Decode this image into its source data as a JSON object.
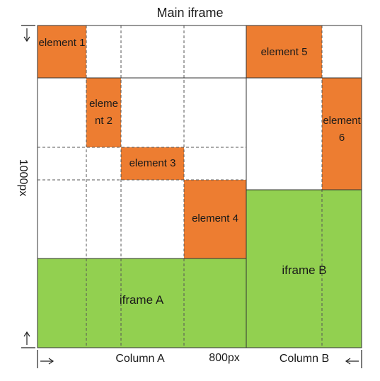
{
  "title": "Main iframe",
  "height_label": "1000px",
  "width_label": "800px",
  "columns": {
    "a": "Column A",
    "b": "Column B"
  },
  "iframes": {
    "a": "iframe A",
    "b": "iframe B"
  },
  "elements": [
    "element 1",
    "element 2",
    "element 3",
    "element 4",
    "element 5",
    "element 6"
  ],
  "colors": {
    "element_fill": "#ED7D31",
    "iframe_fill": "#92D050",
    "line": "#333333",
    "grid_dash": "#555555"
  }
}
